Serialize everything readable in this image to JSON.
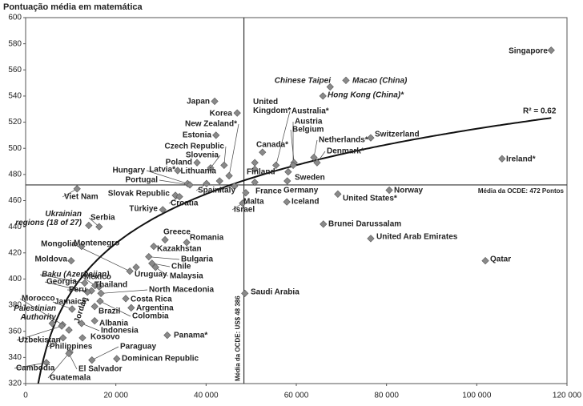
{
  "chart_data": {
    "type": "scatter",
    "title": "Pontuação média em matemática",
    "xlim": [
      0,
      120000
    ],
    "ylim": [
      320,
      600
    ],
    "xticks": [
      {
        "value": 0,
        "label": "0"
      },
      {
        "value": 20000,
        "label": "20 000"
      },
      {
        "value": 40000,
        "label": "40 000"
      },
      {
        "value": 60000,
        "label": "60 000"
      },
      {
        "value": 80000,
        "label": "80 000"
      },
      {
        "value": 100000,
        "label": "100 000"
      },
      {
        "value": 120000,
        "label": "120 000"
      }
    ],
    "yticks": [
      320,
      340,
      360,
      380,
      400,
      420,
      440,
      460,
      480,
      500,
      520,
      540,
      560,
      580,
      600
    ],
    "color": "#8a8a8a",
    "reference_lines": [
      {
        "axis": "x",
        "value": 48386,
        "label": "Média da OCDE: US$ 48 386"
      },
      {
        "axis": "y",
        "value": 472,
        "label": "Média da OCDE: 472 Pontos"
      }
    ],
    "trendline": {
      "form": "logarithmic",
      "intercept": -112.5,
      "slope": 54.5,
      "label": "R² = 0.62"
    },
    "points": [
      {
        "label": "Singapore",
        "x": 116500,
        "y": 575
      },
      {
        "label": "Macao (China)",
        "x": 71000,
        "y": 552
      },
      {
        "label": "Chinese Taipei",
        "x": 67500,
        "y": 547
      },
      {
        "label": "Hong Kong (China)*",
        "x": 65900,
        "y": 540
      },
      {
        "label": "Japan",
        "x": 41900,
        "y": 536
      },
      {
        "label": "Korea",
        "x": 46900,
        "y": 527
      },
      {
        "label": "Estonia",
        "x": 42200,
        "y": 510
      },
      {
        "label": "Switzerland",
        "x": 76500,
        "y": 508
      },
      {
        "label": "Canada*",
        "x": 52500,
        "y": 497
      },
      {
        "label": "Netherlands*",
        "x": 63900,
        "y": 493
      },
      {
        "label": "Ireland*",
        "x": 105600,
        "y": 492
      },
      {
        "label": "Belgium",
        "x": 59500,
        "y": 489
      },
      {
        "label": "Denmark*",
        "x": 64600,
        "y": 489
      },
      {
        "label": "United Kingdom*",
        "x": 50800,
        "y": 489
      },
      {
        "label": "Poland",
        "x": 38000,
        "y": 489
      },
      {
        "label": "Austria",
        "x": 59300,
        "y": 487
      },
      {
        "label": "Australia*",
        "x": 55500,
        "y": 487
      },
      {
        "label": "Czech Republic",
        "x": 44000,
        "y": 487
      },
      {
        "label": "Slovenia",
        "x": 41000,
        "y": 485
      },
      {
        "label": "Finland",
        "x": 50800,
        "y": 484
      },
      {
        "label": "Latvia*",
        "x": 33700,
        "y": 483
      },
      {
        "label": "Sweden",
        "x": 58200,
        "y": 482
      },
      {
        "label": "New Zealand*",
        "x": 45100,
        "y": 479
      },
      {
        "label": "Lithuania",
        "x": 43000,
        "y": 475
      },
      {
        "label": "Germany",
        "x": 58000,
        "y": 475
      },
      {
        "label": "France",
        "x": 50800,
        "y": 474
      },
      {
        "label": "Spain",
        "x": 40100,
        "y": 473
      },
      {
        "label": "Hungary",
        "x": 35900,
        "y": 473
      },
      {
        "label": "Portugal",
        "x": 36400,
        "y": 472
      },
      {
        "label": "Italy",
        "x": 46300,
        "y": 471
      },
      {
        "label": "Viet Nam",
        "x": 11400,
        "y": 469
      },
      {
        "label": "Norway",
        "x": 80600,
        "y": 468
      },
      {
        "label": "Malta",
        "x": 48800,
        "y": 466
      },
      {
        "label": "United States*",
        "x": 69200,
        "y": 465
      },
      {
        "label": "Slovak Republic",
        "x": 33200,
        "y": 464
      },
      {
        "label": "Croatia",
        "x": 34100,
        "y": 463
      },
      {
        "label": "Iceland",
        "x": 57900,
        "y": 459
      },
      {
        "label": "Israel",
        "x": 48100,
        "y": 458
      },
      {
        "label": "Türkiye",
        "x": 30400,
        "y": 453
      },
      {
        "label": "Brunei Darussalam",
        "x": 66000,
        "y": 442
      },
      {
        "label": "Ukrainian regions (18 of 27)",
        "x": 14000,
        "y": 441
      },
      {
        "label": "Serbia",
        "x": 16300,
        "y": 440
      },
      {
        "label": "United Arab Emirates",
        "x": 76500,
        "y": 431
      },
      {
        "label": "Greece",
        "x": 30900,
        "y": 430
      },
      {
        "label": "Romania",
        "x": 35700,
        "y": 428
      },
      {
        "label": "Kazakhstan",
        "x": 28400,
        "y": 425
      },
      {
        "label": "Mongolia",
        "x": 12400,
        "y": 425
      },
      {
        "label": "Bulgaria",
        "x": 27300,
        "y": 417
      },
      {
        "label": "Moldova",
        "x": 10100,
        "y": 414
      },
      {
        "label": "Qatar",
        "x": 101900,
        "y": 414
      },
      {
        "label": "Chile",
        "x": 28000,
        "y": 412
      },
      {
        "label": "Uruguay",
        "x": 24500,
        "y": 409
      },
      {
        "label": "Malaysia",
        "x": 28800,
        "y": 409
      },
      {
        "label": "Montenegro",
        "x": 23100,
        "y": 406
      },
      {
        "label": "Baku (Azerbaijan)",
        "x": 13100,
        "y": 397
      },
      {
        "label": "Mexico",
        "x": 15400,
        "y": 395
      },
      {
        "label": "Thailand",
        "x": 16300,
        "y": 394
      },
      {
        "label": "Peru",
        "x": 14600,
        "y": 391
      },
      {
        "label": "Georgia",
        "x": 13700,
        "y": 390
      },
      {
        "label": "Saudi Arabia",
        "x": 48600,
        "y": 389
      },
      {
        "label": "North Macedonia",
        "x": 16700,
        "y": 389
      },
      {
        "label": "Costa Rica",
        "x": 22200,
        "y": 385
      },
      {
        "label": "Colombia",
        "x": 16500,
        "y": 383
      },
      {
        "label": "Brazil",
        "x": 15300,
        "y": 379
      },
      {
        "label": "Argentina",
        "x": 23400,
        "y": 378
      },
      {
        "label": "Jamaica*",
        "x": 10300,
        "y": 377
      },
      {
        "label": "Albania",
        "x": 15300,
        "y": 368
      },
      {
        "label": "Palestinian Authority",
        "x": 5900,
        "y": 366
      },
      {
        "label": "Indonesia",
        "x": 12400,
        "y": 366
      },
      {
        "label": "Morocco",
        "x": 8200,
        "y": 365
      },
      {
        "label": "Uzbekistan",
        "x": 8000,
        "y": 364
      },
      {
        "label": "Jordan",
        "x": 9600,
        "y": 361
      },
      {
        "label": "Panama*",
        "x": 31400,
        "y": 357
      },
      {
        "label": "Kosovo",
        "x": 12600,
        "y": 355
      },
      {
        "label": "Philippines",
        "x": 8300,
        "y": 355
      },
      {
        "label": "Guatemala",
        "x": 9800,
        "y": 344
      },
      {
        "label": "El Salvador",
        "x": 9600,
        "y": 343
      },
      {
        "label": "Dominican Republic",
        "x": 20200,
        "y": 339
      },
      {
        "label": "Paraguay",
        "x": 14700,
        "y": 338
      },
      {
        "label": "Cambodia",
        "x": 4600,
        "y": 336
      }
    ]
  }
}
